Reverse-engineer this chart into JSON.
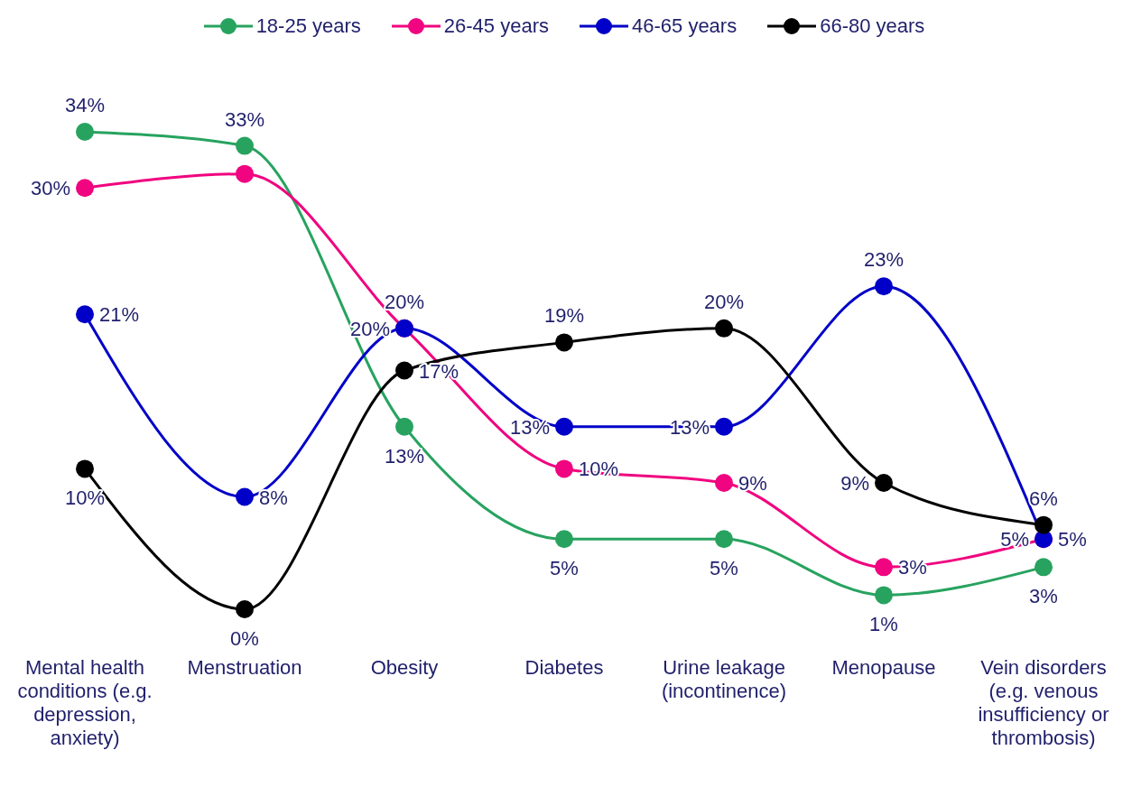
{
  "chart_data": {
    "type": "line",
    "categories": [
      "Mental health conditions (e.g. depression, anxiety)",
      "Menstruation",
      "Obesity",
      "Diabetes",
      "Urine leakage (incontinence)",
      "Menopause",
      "Vein disorders (e.g. venous insufficiency or thrombosis)"
    ],
    "series": [
      {
        "name": "18-25 years",
        "color": "#27a35f",
        "values": [
          34,
          33,
          13,
          5,
          5,
          1,
          3
        ],
        "value_labels": [
          "34%",
          "33%",
          "13%",
          "5%",
          "5%",
          "1%",
          "3%"
        ]
      },
      {
        "name": "26-45 years",
        "color": "#f0047f",
        "values": [
          30,
          31,
          20,
          10,
          9,
          3,
          5
        ],
        "value_labels": [
          "30%",
          null,
          "20%",
          "10%",
          "9%",
          "3%",
          "5%"
        ]
      },
      {
        "name": "46-65 years",
        "color": "#0000c8",
        "values": [
          21,
          8,
          20,
          13,
          13,
          23,
          5
        ],
        "value_labels": [
          "21%",
          "8%",
          "20%",
          "13%",
          "13%",
          "23%",
          "5%"
        ]
      },
      {
        "name": "66-80 years",
        "color": "#000000",
        "values": [
          10,
          0,
          17,
          19,
          20,
          9,
          6
        ],
        "value_labels": [
          "10%",
          "0%",
          "17%",
          "19%",
          "20%",
          "9%",
          "6%"
        ]
      }
    ],
    "legend": "top",
    "marker": "circle",
    "line_style": "solid",
    "grid": false
  }
}
